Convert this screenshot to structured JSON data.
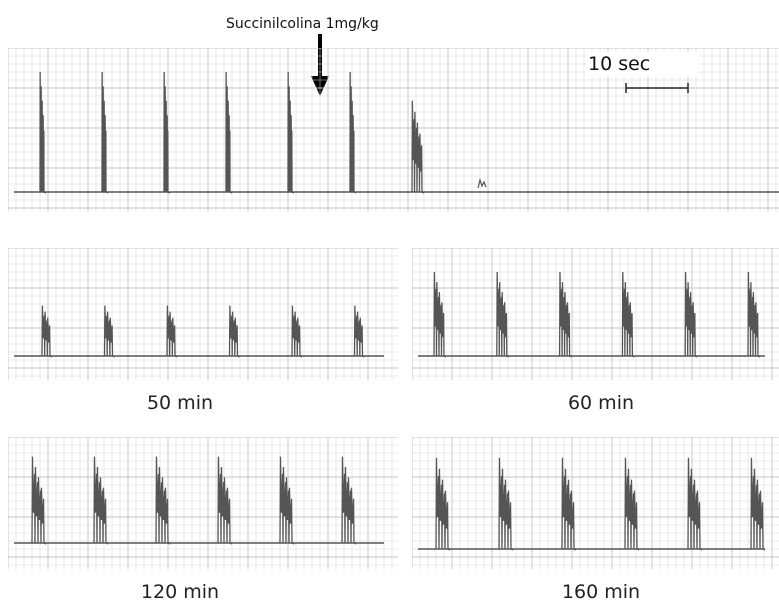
{
  "drug_annotation": "Succinilcolina 1mg/kg",
  "scale_bar": {
    "label": "10 sec"
  },
  "panels": [
    {
      "id": "top",
      "caption": "",
      "burst_count": 6,
      "amplitude": 1.0,
      "decaying_burst_after": true
    },
    {
      "id": "50",
      "caption": "50 min",
      "burst_count": 6,
      "amplitude": 0.42
    },
    {
      "id": "60",
      "caption": "60 min",
      "burst_count": 6,
      "amplitude": 0.7
    },
    {
      "id": "120",
      "caption": "120 min",
      "burst_count": 6,
      "amplitude": 0.72
    },
    {
      "id": "160",
      "caption": "160 min",
      "burst_count": 6,
      "amplitude": 0.76
    }
  ],
  "colors": {
    "trace": "#555555",
    "grid": "#d6d6d6",
    "grid_major": "#c4c4c4"
  }
}
